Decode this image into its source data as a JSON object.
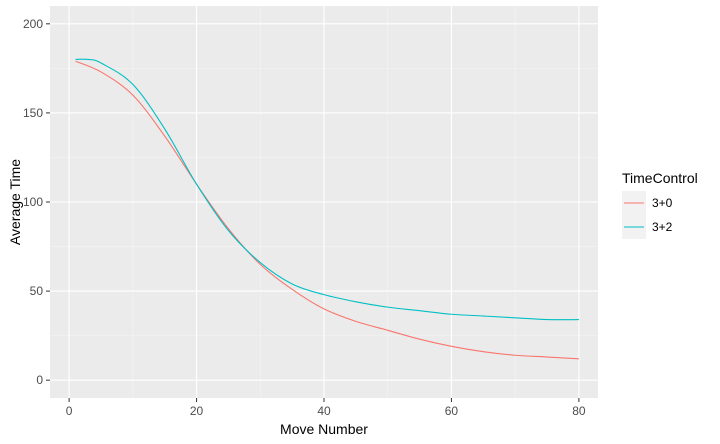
{
  "chart_data": {
    "type": "line",
    "title": "",
    "xlabel": "Move Number",
    "ylabel": "Average Time",
    "xlim": [
      -3,
      83
    ],
    "ylim": [
      -10,
      210
    ],
    "x_ticks": [
      0,
      20,
      40,
      60,
      80
    ],
    "y_ticks": [
      0,
      50,
      100,
      150,
      200
    ],
    "grid": true,
    "legend": {
      "title": "TimeControl",
      "placement": "right"
    },
    "series": [
      {
        "name": "3+0",
        "color": "#F8766D",
        "x": [
          1,
          5,
          10,
          15,
          20,
          25,
          30,
          35,
          40,
          45,
          50,
          55,
          60,
          65,
          70,
          75,
          80
        ],
        "y": [
          179,
          173,
          160,
          137,
          110,
          85,
          65,
          51,
          40,
          33,
          28,
          23,
          19,
          16,
          14,
          13,
          12
        ]
      },
      {
        "name": "3+2",
        "color": "#00BFC4",
        "x": [
          1,
          3,
          5,
          10,
          15,
          20,
          25,
          30,
          35,
          40,
          45,
          50,
          55,
          60,
          65,
          70,
          75,
          80
        ],
        "y": [
          180,
          180,
          178,
          166,
          141,
          110,
          84,
          66,
          54,
          48,
          44,
          41,
          39,
          37,
          36,
          35,
          34,
          34
        ]
      }
    ]
  }
}
